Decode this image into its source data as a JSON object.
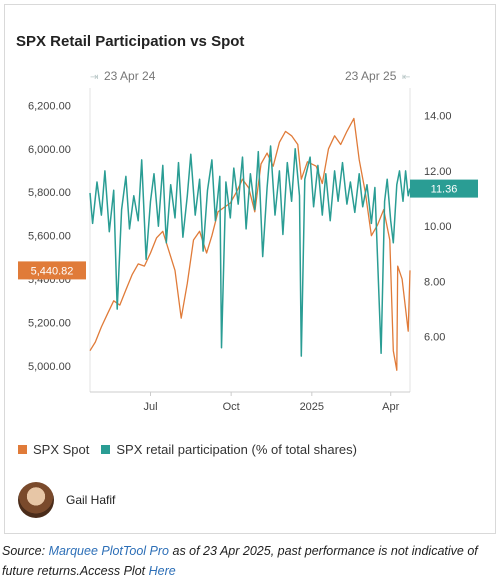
{
  "card": {
    "title": "SPX Retail Participation vs Spot"
  },
  "range_labels": {
    "start": "23 Apr 24",
    "end": "23 Apr 25"
  },
  "chart_data": {
    "type": "line",
    "title": "SPX Retail Participation vs Spot",
    "x_range": [
      "2024-04-23",
      "2025-04-23"
    ],
    "x_tick_labels": [
      {
        "label": "Jul",
        "date": "2024-07-01"
      },
      {
        "label": "Oct",
        "date": "2024-10-01"
      },
      {
        "label": "2025",
        "date": "2025-01-01"
      },
      {
        "label": "Apr",
        "date": "2025-04-01"
      }
    ],
    "y_left": {
      "min": 4880,
      "max": 6280,
      "ticks": [
        "5,000.00",
        "5,200.00",
        "5,400.00",
        "5,600.00",
        "5,800.00",
        "6,000.00",
        "6,200.00"
      ]
    },
    "y_right": {
      "min": 4.0,
      "max": 15.0,
      "ticks": [
        "6.00",
        "8.00",
        "10.00",
        "12.00",
        "14.00"
      ]
    },
    "series": [
      {
        "name": "SPX Spot",
        "axis": "left",
        "color": "#e07b39",
        "last_value_label": "5,440.82",
        "points": [
          [
            "2024-04-23",
            5070
          ],
          [
            "2024-04-29",
            5110
          ],
          [
            "2024-05-06",
            5180
          ],
          [
            "2024-05-13",
            5240
          ],
          [
            "2024-05-20",
            5300
          ],
          [
            "2024-05-27",
            5280
          ],
          [
            "2024-06-03",
            5350
          ],
          [
            "2024-06-10",
            5420
          ],
          [
            "2024-06-17",
            5470
          ],
          [
            "2024-06-24",
            5460
          ],
          [
            "2024-07-01",
            5520
          ],
          [
            "2024-07-08",
            5590
          ],
          [
            "2024-07-15",
            5620
          ],
          [
            "2024-07-22",
            5530
          ],
          [
            "2024-07-29",
            5440
          ],
          [
            "2024-08-05",
            5220
          ],
          [
            "2024-08-12",
            5380
          ],
          [
            "2024-08-19",
            5580
          ],
          [
            "2024-08-26",
            5620
          ],
          [
            "2024-09-03",
            5520
          ],
          [
            "2024-09-09",
            5600
          ],
          [
            "2024-09-16",
            5710
          ],
          [
            "2024-09-23",
            5730
          ],
          [
            "2024-09-30",
            5750
          ],
          [
            "2024-10-07",
            5800
          ],
          [
            "2024-10-14",
            5860
          ],
          [
            "2024-10-21",
            5820
          ],
          [
            "2024-10-28",
            5710
          ],
          [
            "2024-11-04",
            5930
          ],
          [
            "2024-11-11",
            5980
          ],
          [
            "2024-11-18",
            5920
          ],
          [
            "2024-11-25",
            6030
          ],
          [
            "2024-12-02",
            6080
          ],
          [
            "2024-12-09",
            6060
          ],
          [
            "2024-12-16",
            6020
          ],
          [
            "2024-12-20",
            5860
          ],
          [
            "2024-12-27",
            5940
          ],
          [
            "2025-01-06",
            5920
          ],
          [
            "2025-01-13",
            5840
          ],
          [
            "2025-01-20",
            6000
          ],
          [
            "2025-01-27",
            6060
          ],
          [
            "2025-02-03",
            6020
          ],
          [
            "2025-02-10",
            6080
          ],
          [
            "2025-02-18",
            6140
          ],
          [
            "2025-02-24",
            5950
          ],
          [
            "2025-03-03",
            5800
          ],
          [
            "2025-03-10",
            5600
          ],
          [
            "2025-03-17",
            5650
          ],
          [
            "2025-03-24",
            5720
          ],
          [
            "2025-03-31",
            5580
          ],
          [
            "2025-04-04",
            5070
          ],
          [
            "2025-04-08",
            4980
          ],
          [
            "2025-04-09",
            5460
          ],
          [
            "2025-04-14",
            5400
          ],
          [
            "2025-04-21",
            5160
          ],
          [
            "2025-04-23",
            5440
          ]
        ]
      },
      {
        "name": "SPX retail participation (% of total shares)",
        "axis": "right",
        "color": "#2a9d94",
        "last_value_label": "11.36",
        "points": [
          [
            "2024-04-23",
            11.2
          ],
          [
            "2024-04-26",
            10.1
          ],
          [
            "2024-05-01",
            11.6
          ],
          [
            "2024-05-06",
            10.4
          ],
          [
            "2024-05-10",
            12.0
          ],
          [
            "2024-05-15",
            9.8
          ],
          [
            "2024-05-20",
            11.3
          ],
          [
            "2024-05-24",
            7.0
          ],
          [
            "2024-05-29",
            10.6
          ],
          [
            "2024-06-03",
            11.8
          ],
          [
            "2024-06-07",
            9.9
          ],
          [
            "2024-06-12",
            11.1
          ],
          [
            "2024-06-17",
            10.2
          ],
          [
            "2024-06-21",
            12.4
          ],
          [
            "2024-06-26",
            8.8
          ],
          [
            "2024-07-01",
            10.9
          ],
          [
            "2024-07-05",
            11.9
          ],
          [
            "2024-07-10",
            10.0
          ],
          [
            "2024-07-15",
            12.2
          ],
          [
            "2024-07-19",
            9.4
          ],
          [
            "2024-07-24",
            11.5
          ],
          [
            "2024-07-29",
            10.3
          ],
          [
            "2024-08-02",
            12.3
          ],
          [
            "2024-08-07",
            9.6
          ],
          [
            "2024-08-12",
            11.1
          ],
          [
            "2024-08-16",
            12.6
          ],
          [
            "2024-08-21",
            10.4
          ],
          [
            "2024-08-26",
            11.7
          ],
          [
            "2024-08-30",
            9.1
          ],
          [
            "2024-09-04",
            11.3
          ],
          [
            "2024-09-09",
            12.4
          ],
          [
            "2024-09-13",
            10.2
          ],
          [
            "2024-09-18",
            11.8
          ],
          [
            "2024-09-20",
            5.6
          ],
          [
            "2024-09-25",
            11.6
          ],
          [
            "2024-09-30",
            10.3
          ],
          [
            "2024-10-04",
            12.1
          ],
          [
            "2024-10-09",
            10.8
          ],
          [
            "2024-10-14",
            12.5
          ],
          [
            "2024-10-18",
            9.9
          ],
          [
            "2024-10-23",
            11.9
          ],
          [
            "2024-10-28",
            10.6
          ],
          [
            "2024-11-01",
            12.7
          ],
          [
            "2024-11-06",
            8.9
          ],
          [
            "2024-11-11",
            11.4
          ],
          [
            "2024-11-15",
            12.9
          ],
          [
            "2024-11-20",
            10.4
          ],
          [
            "2024-11-25",
            12.0
          ],
          [
            "2024-11-29",
            9.7
          ],
          [
            "2024-12-04",
            12.3
          ],
          [
            "2024-12-09",
            10.9
          ],
          [
            "2024-12-13",
            12.8
          ],
          [
            "2024-12-18",
            11.1
          ],
          [
            "2024-12-20",
            5.3
          ],
          [
            "2024-12-24",
            11.7
          ],
          [
            "2024-12-30",
            12.5
          ],
          [
            "2025-01-03",
            10.7
          ],
          [
            "2025-01-08",
            12.2
          ],
          [
            "2025-01-13",
            10.4
          ],
          [
            "2025-01-17",
            11.9
          ],
          [
            "2025-01-22",
            10.2
          ],
          [
            "2025-01-27",
            12.0
          ],
          [
            "2025-01-31",
            10.9
          ],
          [
            "2025-02-05",
            12.3
          ],
          [
            "2025-02-10",
            10.8
          ],
          [
            "2025-02-14",
            11.6
          ],
          [
            "2025-02-19",
            10.5
          ],
          [
            "2025-02-24",
            11.9
          ],
          [
            "2025-02-28",
            10.7
          ],
          [
            "2025-03-05",
            11.5
          ],
          [
            "2025-03-10",
            10.1
          ],
          [
            "2025-03-14",
            11.4
          ],
          [
            "2025-03-21",
            5.4
          ],
          [
            "2025-03-25",
            10.9
          ],
          [
            "2025-03-28",
            11.7
          ],
          [
            "2025-04-01",
            10.2
          ],
          [
            "2025-04-04",
            9.4
          ],
          [
            "2025-04-08",
            11.5
          ],
          [
            "2025-04-11",
            12.0
          ],
          [
            "2025-04-15",
            10.9
          ],
          [
            "2025-04-18",
            12.0
          ],
          [
            "2025-04-21",
            11.1
          ],
          [
            "2025-04-23",
            11.36
          ]
        ]
      }
    ],
    "legend_position": "bottom"
  },
  "legend": {
    "items": [
      {
        "label": "SPX Spot",
        "color": "#e07b39"
      },
      {
        "label": "SPX retail participation (% of total shares)",
        "color": "#2a9d94"
      }
    ]
  },
  "author": {
    "name": "Gail Hafif"
  },
  "footer": {
    "prefix": "Source: ",
    "tool": "Marquee PlotTool Pro",
    "middle": " as of 23 Apr 2025, past performance is not indicative of future returns.Access Plot ",
    "link": "Here"
  }
}
